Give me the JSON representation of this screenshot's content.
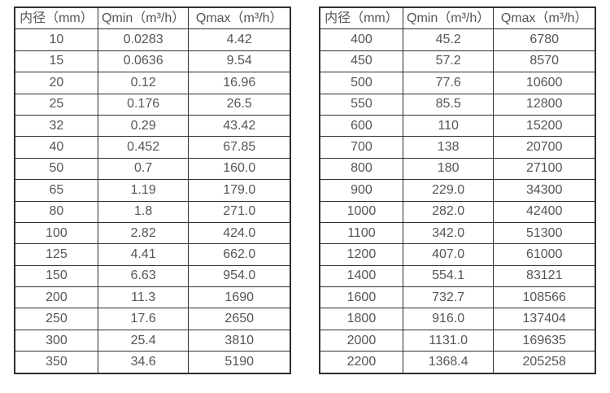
{
  "colors": {
    "border": "#2f2f2f",
    "text": "#555555",
    "background": "#ffffff"
  },
  "table_left": {
    "headers": [
      "内径（mm）",
      "Qmin（m³/h）",
      "Qmax（m³/h）"
    ],
    "rows": [
      [
        "10",
        "0.0283",
        "4.42"
      ],
      [
        "15",
        "0.0636",
        "9.54"
      ],
      [
        "20",
        "0.12",
        "16.96"
      ],
      [
        "25",
        "0.176",
        "26.5"
      ],
      [
        "32",
        "0.29",
        "43.42"
      ],
      [
        "40",
        "0.452",
        "67.85"
      ],
      [
        "50",
        "0.7",
        "160.0"
      ],
      [
        "65",
        "1.19",
        "179.0"
      ],
      [
        "80",
        "1.8",
        "271.0"
      ],
      [
        "100",
        "2.82",
        "424.0"
      ],
      [
        "125",
        "4.41",
        "662.0"
      ],
      [
        "150",
        "6.63",
        "954.0"
      ],
      [
        "200",
        "11.3",
        "1690"
      ],
      [
        "250",
        "17.6",
        "2650"
      ],
      [
        "300",
        "25.4",
        "3810"
      ],
      [
        "350",
        "34.6",
        "5190"
      ]
    ]
  },
  "table_right": {
    "headers": [
      "内径（mm）",
      "Qmin（m³/h）",
      "Qmax（m³/h）"
    ],
    "rows": [
      [
        "400",
        "45.2",
        "6780"
      ],
      [
        "450",
        "57.2",
        "8570"
      ],
      [
        "500",
        "77.6",
        "10600"
      ],
      [
        "550",
        "85.5",
        "12800"
      ],
      [
        "600",
        "110",
        "15200"
      ],
      [
        "700",
        "138",
        "20700"
      ],
      [
        "800",
        "180",
        "27100"
      ],
      [
        "900",
        "229.0",
        "34300"
      ],
      [
        "1000",
        "282.0",
        "42400"
      ],
      [
        "1100",
        "342.0",
        "51300"
      ],
      [
        "1200",
        "407.0",
        "61000"
      ],
      [
        "1400",
        "554.1",
        "83121"
      ],
      [
        "1600",
        "732.7",
        "108566"
      ],
      [
        "1800",
        "916.0",
        "137404"
      ],
      [
        "2000",
        "1131.0",
        "169635"
      ],
      [
        "2200",
        "1368.4",
        "205258"
      ]
    ]
  }
}
